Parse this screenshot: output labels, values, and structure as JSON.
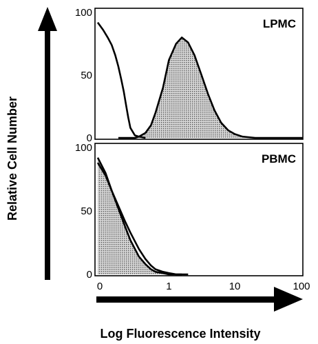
{
  "chart_data": [
    {
      "type": "area",
      "title": "LPMC",
      "ylim": [
        0,
        100
      ],
      "y_ticks": [
        "100",
        "50",
        "0"
      ],
      "xscale": "log",
      "series": [
        {
          "fill": "#9a9a9a",
          "x": [
            0.1,
            0.15,
            0.2,
            0.25,
            0.3,
            0.4,
            0.5,
            0.6,
            0.8,
            1.0,
            1.3,
            1.6,
            2.0,
            2.5,
            3.2,
            4.0,
            5.0,
            6.3,
            8.0,
            10.0,
            13.0,
            20.0,
            40.0,
            100.0
          ],
          "values": [
            0,
            0,
            0,
            0,
            1,
            4,
            10,
            20,
            40,
            62,
            75,
            80,
            76,
            66,
            50,
            35,
            22,
            12,
            6,
            3,
            1,
            0,
            0,
            0
          ]
        },
        {
          "fill": "none",
          "x": [
            0.0,
            0.02,
            0.04,
            0.06,
            0.08,
            0.1,
            0.12,
            0.14,
            0.16,
            0.18,
            0.2,
            0.25,
            0.3,
            0.4
          ],
          "values": [
            92,
            86,
            80,
            74,
            66,
            57,
            47,
            37,
            26,
            16,
            8,
            2,
            1,
            0
          ]
        }
      ]
    },
    {
      "type": "area",
      "title": "PBMC",
      "ylim": [
        0,
        100
      ],
      "y_ticks": [
        "100",
        "50",
        "0"
      ],
      "xscale": "log",
      "x_ticks": [
        "0",
        "1",
        "10",
        "100"
      ],
      "series": [
        {
          "fill": "#9a9a9a",
          "x": [
            0.0,
            0.03,
            0.06,
            0.1,
            0.15,
            0.2,
            0.3,
            0.4,
            0.5,
            0.6,
            0.8,
            1.0,
            1.3,
            1.6
          ],
          "values": [
            92,
            80,
            66,
            52,
            38,
            27,
            14,
            8,
            4,
            2,
            1,
            0,
            0,
            0
          ]
        },
        {
          "fill": "none",
          "x": [
            0.0,
            0.03,
            0.06,
            0.1,
            0.15,
            0.2,
            0.3,
            0.4,
            0.5,
            0.6,
            0.8,
            1.0,
            1.3,
            1.6,
            2.0
          ],
          "values": [
            88,
            78,
            66,
            54,
            42,
            33,
            20,
            12,
            7,
            4,
            2,
            1,
            0,
            0,
            0
          ]
        }
      ]
    }
  ],
  "axes": {
    "ylabel": "Relative Cell Number",
    "xlabel": "Log Fluorescence Intensity"
  }
}
